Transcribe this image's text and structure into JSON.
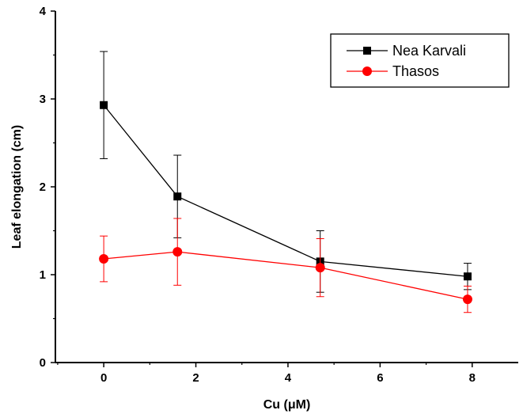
{
  "chart_data": {
    "type": "line",
    "title": "",
    "xlabel": "Cu (μM)",
    "ylabel": "Leaf elongation (cm)",
    "xlim": [
      -1.05,
      9.0
    ],
    "ylim": [
      0,
      4
    ],
    "xticks": [
      0,
      2,
      4,
      6,
      8
    ],
    "yticks": [
      0,
      1,
      2,
      3,
      4
    ],
    "grid": false,
    "legend_position": "top-right",
    "series": [
      {
        "name": "Nea Karvali",
        "color": "#000000",
        "marker": "square",
        "x": [
          0,
          1.6,
          4.7,
          7.9
        ],
        "y": [
          2.93,
          1.89,
          1.15,
          0.98
        ],
        "error": [
          0.61,
          0.47,
          0.35,
          0.15
        ]
      },
      {
        "name": "Thasos",
        "color": "#ff0000",
        "marker": "circle",
        "x": [
          0,
          1.6,
          4.7,
          7.9
        ],
        "y": [
          1.18,
          1.26,
          1.08,
          0.72
        ],
        "error": [
          0.26,
          0.38,
          0.33,
          0.15
        ]
      }
    ]
  }
}
